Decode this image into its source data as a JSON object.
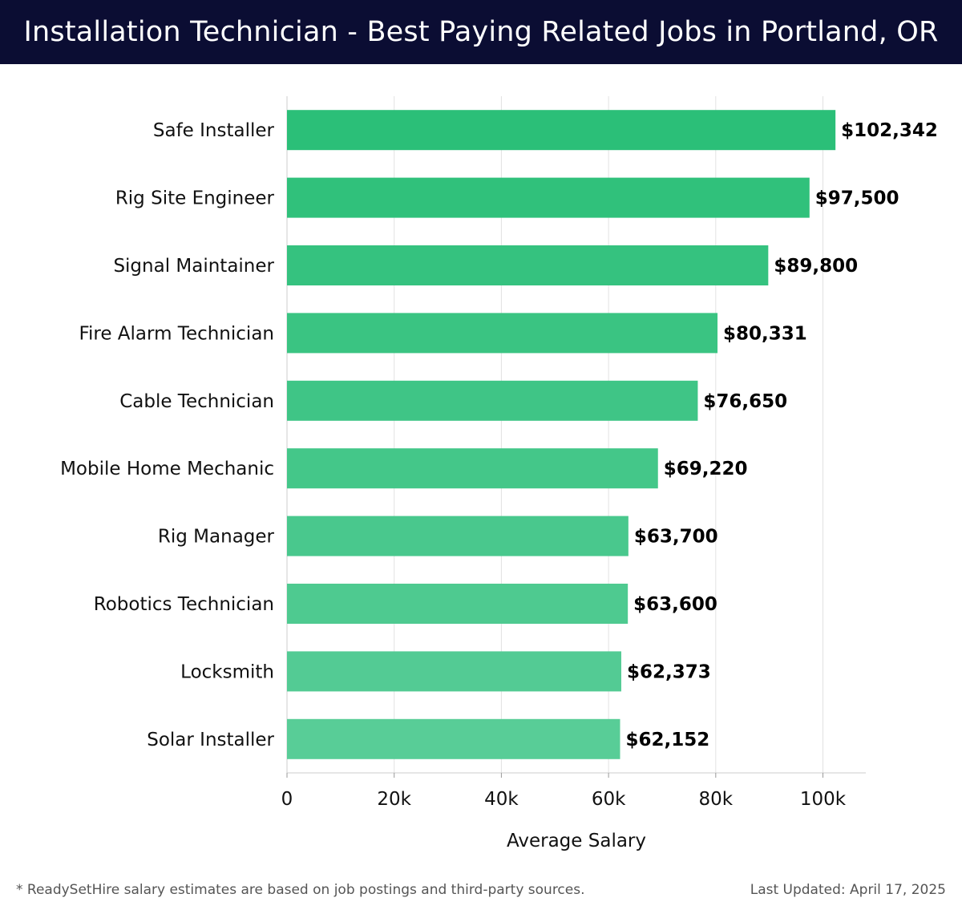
{
  "header": {
    "title": "Installation Technician - Best Paying Related Jobs in Portland, OR"
  },
  "chart_data": {
    "type": "bar",
    "orientation": "horizontal",
    "categories": [
      "Safe Installer",
      "Rig Site Engineer",
      "Signal Maintainer",
      "Fire Alarm Technician",
      "Cable Technician",
      "Mobile Home Mechanic",
      "Rig Manager",
      "Robotics Technician",
      "Locksmith",
      "Solar Installer"
    ],
    "values": [
      102342,
      97500,
      89800,
      80331,
      76650,
      69220,
      63700,
      63600,
      62373,
      62152
    ],
    "value_labels": [
      "$102,342",
      "$97,500",
      "$89,800",
      "$80,331",
      "$76,650",
      "$69,220",
      "$63,700",
      "$63,600",
      "$62,373",
      "$62,152"
    ],
    "xlabel": "Average Salary",
    "ylabel": "",
    "xlim": [
      0,
      108000
    ],
    "xticks": [
      0,
      20000,
      40000,
      60000,
      80000,
      100000
    ],
    "xtick_labels": [
      "0",
      "20k",
      "40k",
      "60k",
      "80k",
      "100k"
    ],
    "grid": true,
    "colors": {
      "bar_dark": "#2bbf78",
      "bar_light": "#58cd97",
      "grid": "#e2e2e2"
    }
  },
  "footer": {
    "note": "* ReadySetHire salary estimates are based on job postings and third-party sources.",
    "updated": "Last Updated: April 17, 2025"
  }
}
